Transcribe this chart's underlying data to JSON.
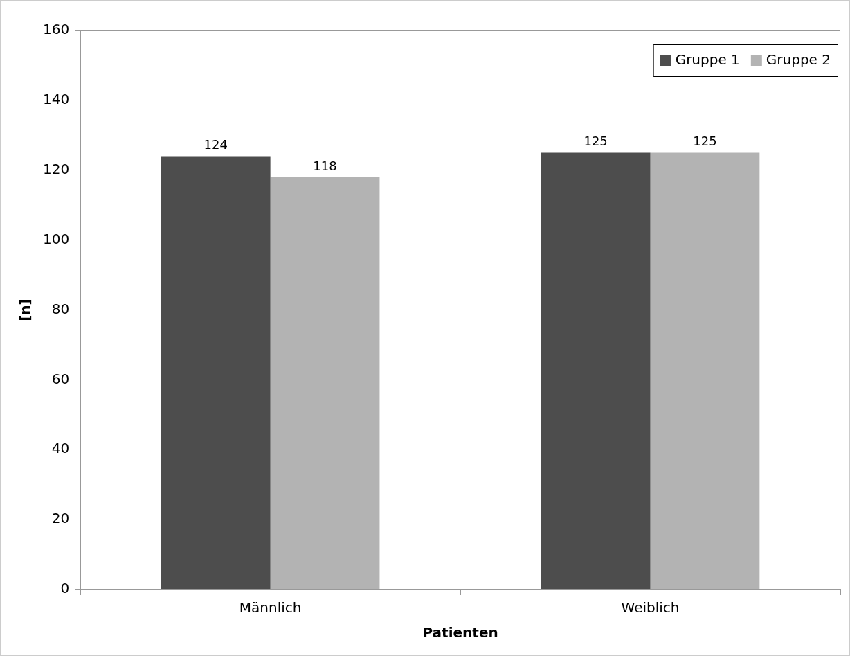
{
  "chart_data": {
    "type": "bar",
    "xlabel": "Patienten",
    "ylabel": "[n]",
    "categories": [
      "Männlich",
      "Weiblich"
    ],
    "series": [
      {
        "name": "Gruppe 1",
        "color": "#4d4d4d",
        "values": [
          124,
          125
        ]
      },
      {
        "name": "Gruppe 2",
        "color": "#b3b3b3",
        "values": [
          118,
          125
        ]
      }
    ],
    "ylim": [
      0,
      160
    ],
    "yticks": [
      0,
      20,
      40,
      60,
      80,
      100,
      120,
      140,
      160
    ],
    "grid": "y",
    "legend": "top right",
    "data_labels": true
  }
}
